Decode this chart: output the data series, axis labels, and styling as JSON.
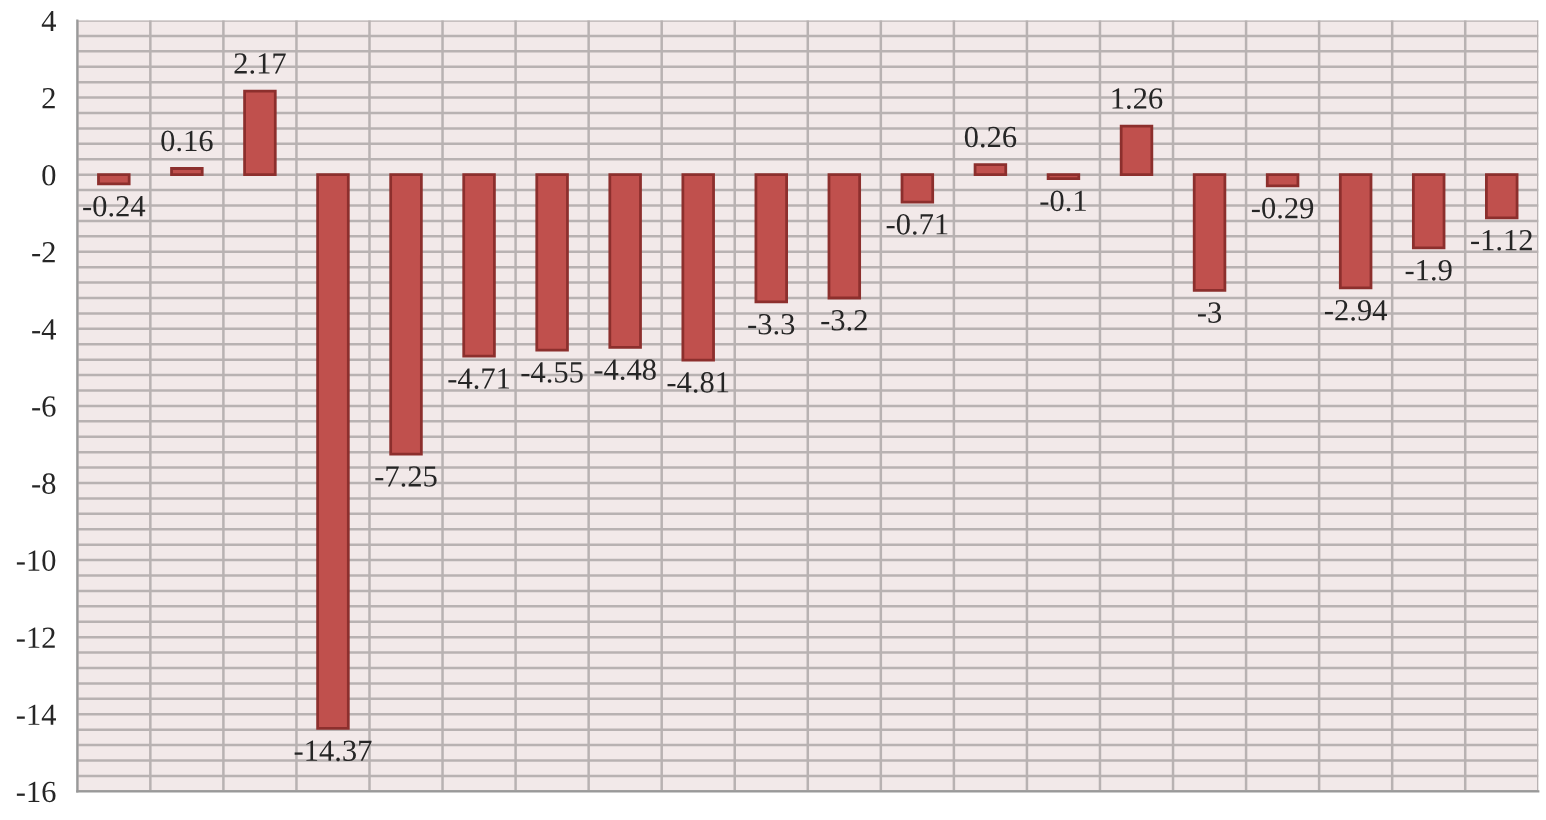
{
  "chart_data": {
    "type": "bar",
    "categories": [
      null,
      null,
      null,
      null,
      null,
      null,
      null,
      null,
      null,
      null,
      null,
      null,
      null,
      null,
      null,
      null,
      null,
      null,
      null,
      null
    ],
    "values": [
      -0.24,
      0.16,
      2.17,
      -14.37,
      -7.25,
      -4.71,
      -4.55,
      -4.48,
      -4.81,
      -3.3,
      -3.2,
      -0.71,
      0.26,
      -0.1,
      1.26,
      -3,
      -0.29,
      -2.94,
      -1.9,
      -1.12
    ],
    "color": "#c0504d",
    "ylim": [
      -16,
      4
    ],
    "yticks": [
      -16,
      -14,
      -12,
      -10,
      -8,
      -6,
      -4,
      -2,
      0,
      2,
      4
    ],
    "grid": true,
    "tick_labels": "y",
    "data_labels": true
  }
}
